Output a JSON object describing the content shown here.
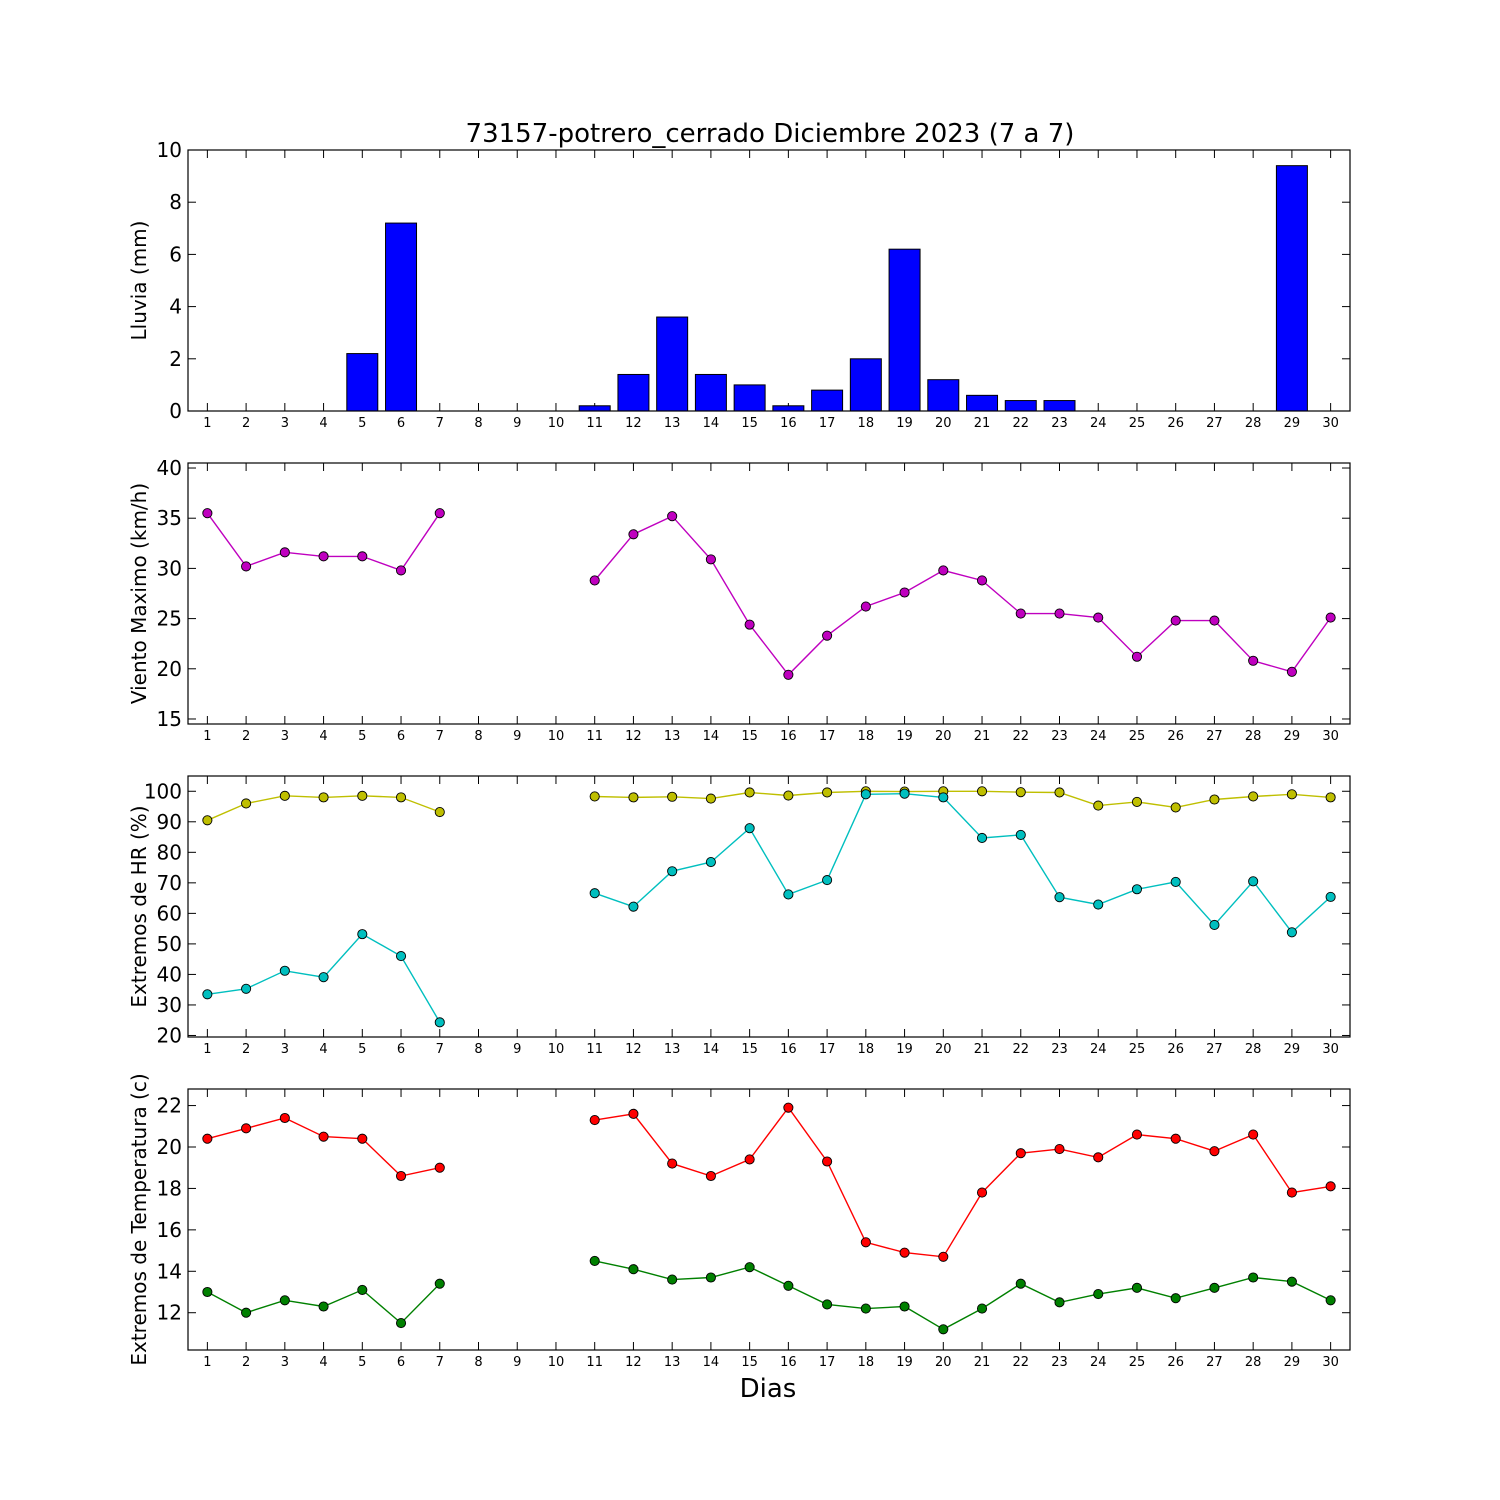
{
  "title": "73157-potrero_cerrado Diciembre 2023  (7 a 7)",
  "xlabel": "Dias",
  "chart_data": [
    {
      "type": "bar",
      "ylabel": "Lluvia (mm)",
      "ylim": [
        0,
        10
      ],
      "yticks": [
        0,
        2,
        4,
        6,
        8,
        10
      ],
      "xlim": [
        0.5,
        30.5
      ],
      "x": [
        1,
        2,
        3,
        4,
        5,
        6,
        7,
        8,
        9,
        10,
        11,
        12,
        13,
        14,
        15,
        16,
        17,
        18,
        19,
        20,
        21,
        22,
        23,
        24,
        25,
        26,
        27,
        28,
        29,
        30
      ],
      "series": [
        {
          "color": "#0000ff",
          "values": [
            0,
            0,
            0,
            0,
            2.2,
            7.2,
            0,
            0,
            0,
            0,
            0.2,
            1.4,
            3.6,
            1.4,
            1.0,
            0.2,
            0.8,
            2.0,
            6.2,
            1.2,
            0.6,
            0.4,
            0.4,
            0,
            0,
            0,
            0,
            0,
            9.4,
            null
          ]
        }
      ]
    },
    {
      "type": "line",
      "ylabel": "Viento Maximo (km/h)",
      "ylim": [
        14.5,
        40.5
      ],
      "yticks": [
        15,
        20,
        25,
        30,
        35,
        40
      ],
      "xlim": [
        0.5,
        30.5
      ],
      "x": [
        1,
        2,
        3,
        4,
        5,
        6,
        7,
        8,
        9,
        10,
        11,
        12,
        13,
        14,
        15,
        16,
        17,
        18,
        19,
        20,
        21,
        22,
        23,
        24,
        25,
        26,
        27,
        28,
        29,
        30
      ],
      "series": [
        {
          "color": "#bf00bf",
          "values": [
            35.5,
            30.2,
            31.6,
            31.2,
            31.2,
            29.8,
            35.5,
            null,
            null,
            null,
            28.8,
            33.4,
            35.2,
            30.9,
            24.4,
            19.4,
            23.3,
            26.2,
            27.6,
            29.8,
            28.8,
            25.5,
            25.5,
            25.1,
            21.2,
            24.8,
            24.8,
            20.8,
            19.7,
            25.1
          ]
        }
      ]
    },
    {
      "type": "line",
      "ylabel": "Extremos de HR (%)",
      "ylim": [
        19.5,
        105
      ],
      "yticks": [
        20,
        30,
        40,
        50,
        60,
        70,
        80,
        90,
        100
      ],
      "xlim": [
        0.5,
        30.5
      ],
      "x": [
        1,
        2,
        3,
        4,
        5,
        6,
        7,
        8,
        9,
        10,
        11,
        12,
        13,
        14,
        15,
        16,
        17,
        18,
        19,
        20,
        21,
        22,
        23,
        24,
        25,
        26,
        27,
        28,
        29,
        30
      ],
      "series": [
        {
          "color": "#bfbf00",
          "values": [
            90.5,
            96,
            98.5,
            98,
            98.5,
            98,
            93.2,
            null,
            null,
            null,
            98.3,
            98,
            98.2,
            97.6,
            99.6,
            98.6,
            99.6,
            100,
            99.9,
            100,
            100,
            99.7,
            99.6,
            95.3,
            96.5,
            94.7,
            97.3,
            98.3,
            99,
            98
          ]
        },
        {
          "color": "#00bfbf",
          "values": [
            33.5,
            35.3,
            41.2,
            39.1,
            53.2,
            46,
            24.3,
            null,
            null,
            null,
            66.6,
            62.2,
            73.8,
            76.8,
            87.9,
            66.2,
            70.9,
            99,
            99.2,
            98,
            84.7,
            85.7,
            65.3,
            62.9,
            67.9,
            70.3,
            56.2,
            70.5,
            53.8,
            65.4
          ]
        }
      ]
    },
    {
      "type": "line",
      "ylabel": "Extremos de Temperatura (c)",
      "ylim": [
        10.2,
        22.8
      ],
      "yticks": [
        12,
        14,
        16,
        18,
        20,
        22
      ],
      "xlim": [
        0.5,
        30.5
      ],
      "x": [
        1,
        2,
        3,
        4,
        5,
        6,
        7,
        8,
        9,
        10,
        11,
        12,
        13,
        14,
        15,
        16,
        17,
        18,
        19,
        20,
        21,
        22,
        23,
        24,
        25,
        26,
        27,
        28,
        29,
        30
      ],
      "series": [
        {
          "color": "#ff0000",
          "values": [
            20.4,
            20.9,
            21.4,
            20.5,
            20.4,
            18.6,
            19.0,
            null,
            null,
            null,
            21.3,
            21.6,
            19.2,
            18.6,
            19.4,
            21.9,
            19.3,
            15.4,
            14.9,
            14.7,
            17.8,
            19.7,
            19.9,
            19.5,
            20.6,
            20.4,
            19.8,
            20.6,
            17.8,
            18.1
          ]
        },
        {
          "color": "#008000",
          "values": [
            13.0,
            12.0,
            12.6,
            12.3,
            13.1,
            11.5,
            13.4,
            null,
            null,
            null,
            14.5,
            14.1,
            13.6,
            13.7,
            14.2,
            13.3,
            12.4,
            12.2,
            12.3,
            11.2,
            12.2,
            13.4,
            12.5,
            12.9,
            13.2,
            12.7,
            13.2,
            13.7,
            13.5,
            12.6
          ]
        }
      ]
    }
  ]
}
